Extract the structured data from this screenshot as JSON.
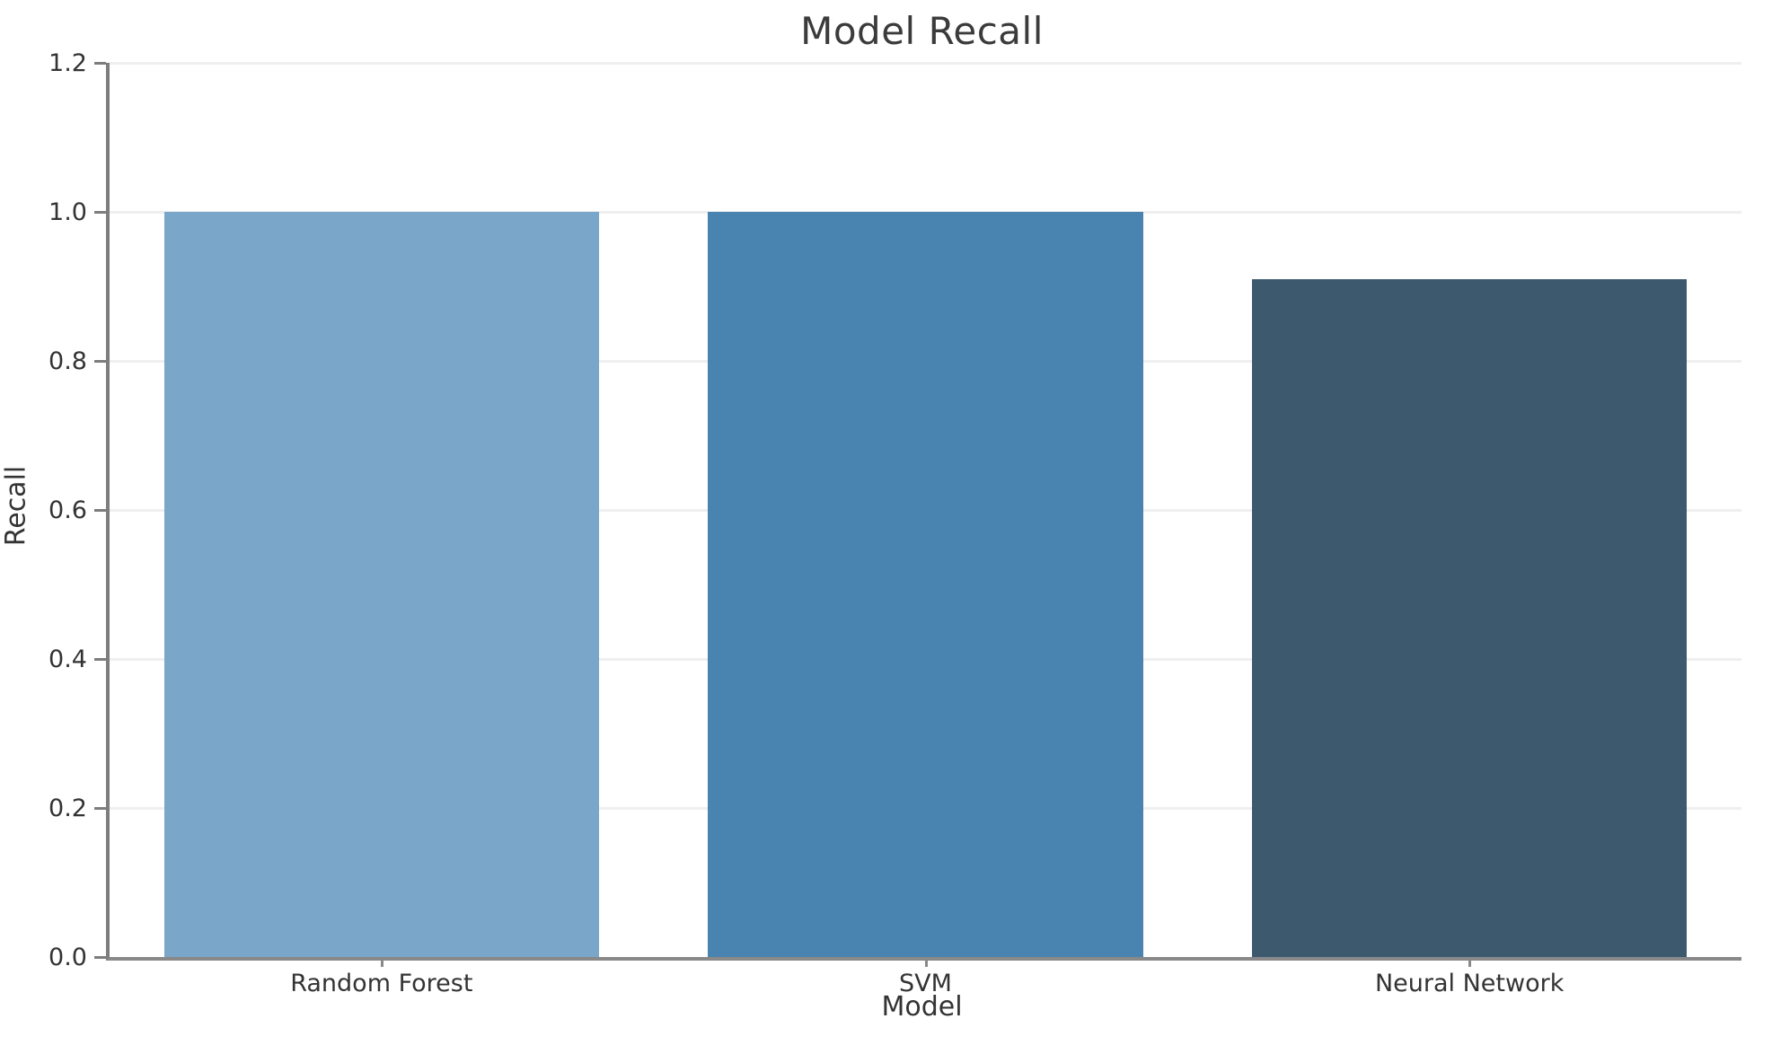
{
  "chart_data": {
    "type": "bar",
    "title": "Model Recall",
    "xlabel": "Model",
    "ylabel": "Recall",
    "categories": [
      "Random Forest",
      "SVM",
      "Neural Network"
    ],
    "values": [
      1.0,
      1.0,
      0.91
    ],
    "bar_colors": [
      "#7aa6c9",
      "#4983b0",
      "#3c596e"
    ],
    "ylim": [
      0.0,
      1.2
    ],
    "yticks": [
      "0.0",
      "0.2",
      "0.4",
      "0.6",
      "0.8",
      "1.0",
      "1.2"
    ],
    "bar_width_fraction": 0.8,
    "grid": "horizontal",
    "legend": "none"
  }
}
